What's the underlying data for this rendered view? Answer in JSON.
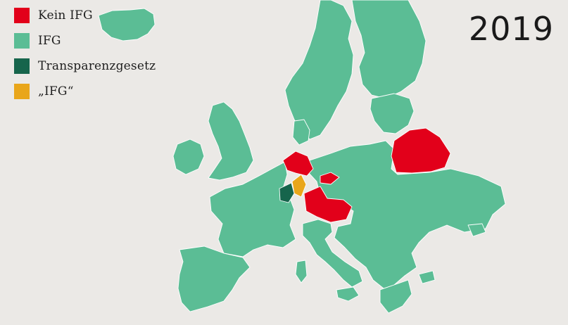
{
  "year": "2019",
  "legend": [
    {
      "label": "Kein IFG",
      "color": "#e2001a"
    },
    {
      "label": "IFG",
      "color": "#5bbd95"
    },
    {
      "label": "Transparenzgesetz",
      "color": "#16654c"
    },
    {
      "label": "„IFG“",
      "color": "#e9a61a"
    }
  ],
  "colors": {
    "background": "#ebe9e6",
    "ifg": "#5bbd95",
    "kein_ifg": "#e2001a",
    "transparenzgesetz": "#16654c",
    "ifg_quoted": "#e9a61a"
  }
}
